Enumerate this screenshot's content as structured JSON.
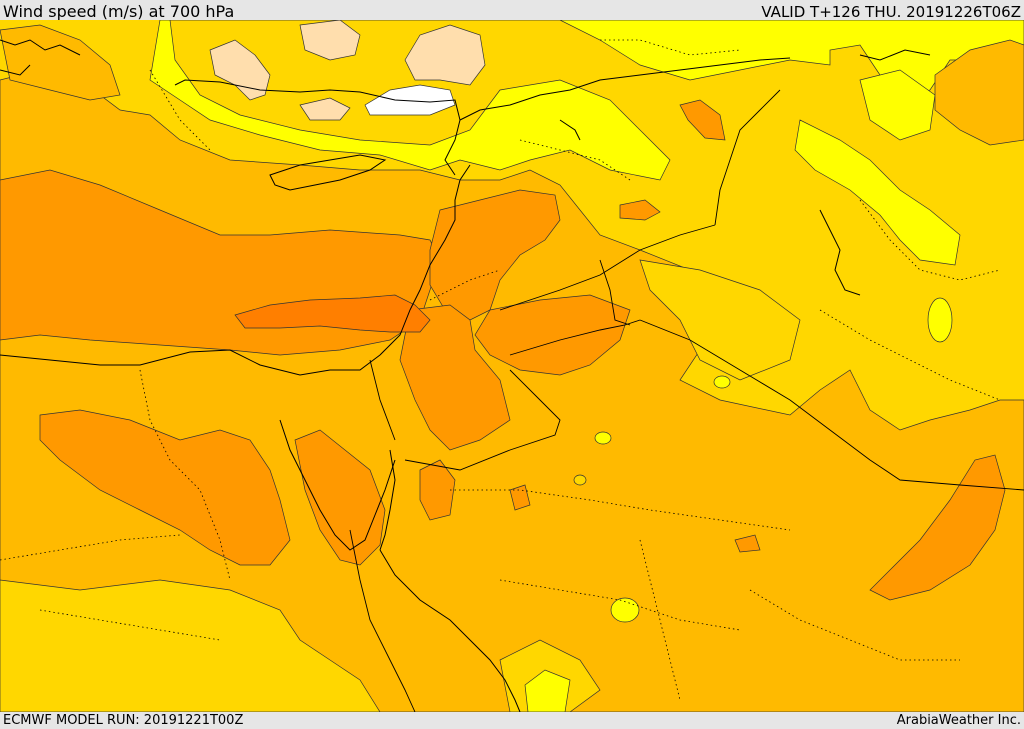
{
  "header": {
    "title": "Wind speed (m/s) at 700 hPa",
    "valid_time": "VALID T+126 THU. 20191226T06Z"
  },
  "footer": {
    "model_run": "ECMWF MODEL RUN: 20191221T00Z",
    "provider": "ArabiaWeather Inc."
  },
  "palette": {
    "background_band": "#ffd700",
    "band_yellow": "#ffff00",
    "band_light_yellow": "#ffff33",
    "band_gold": "#ffba00",
    "band_orange": "#ff9900",
    "band_dark_orange": "#ff7f00",
    "band_peach": "#ffdead",
    "band_white": "#ffffff",
    "coastline": "#000000",
    "contour": "#333333"
  }
}
